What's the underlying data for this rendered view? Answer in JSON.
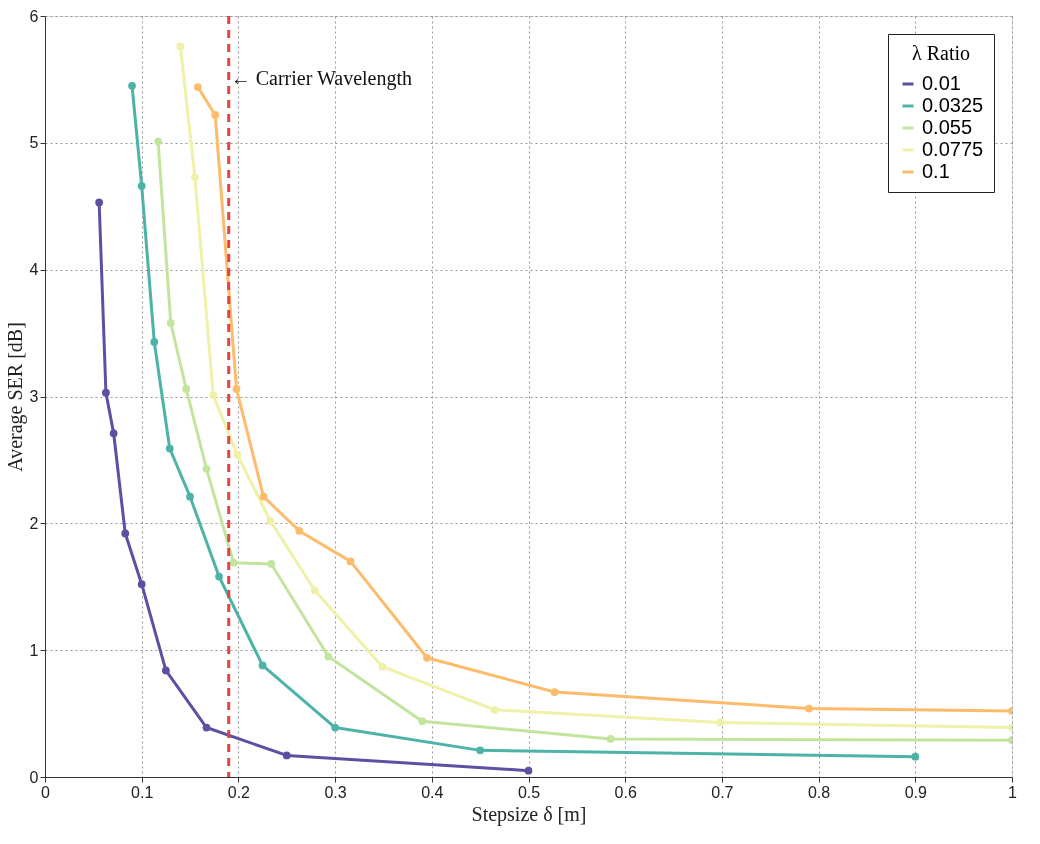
{
  "chart_data": {
    "type": "line",
    "xlabel": "Stepsize δ [m]",
    "ylabel": "Average SER [dB]",
    "legend_title": "λ Ratio",
    "xlim": [
      0,
      1
    ],
    "ylim": [
      0,
      6
    ],
    "xticks": [
      0,
      0.1,
      0.2,
      0.3,
      0.4,
      0.5,
      0.6,
      0.7,
      0.8,
      0.9,
      1
    ],
    "yticks": [
      0,
      1,
      2,
      3,
      4,
      5,
      6
    ],
    "grid": true,
    "legend": "top right",
    "marker": "circle",
    "line_style": "solid",
    "series": [
      {
        "name": "0.01",
        "color": "#5e4fa2",
        "x": [
          0.056,
          0.063,
          0.071,
          0.083,
          0.1,
          0.125,
          0.167,
          0.25,
          0.5
        ],
        "values": [
          4.53,
          3.03,
          2.71,
          1.92,
          1.52,
          0.84,
          0.39,
          0.17,
          0.05
        ]
      },
      {
        "name": "0.0325",
        "color": "#4db3a8",
        "x": [
          0.09,
          0.1,
          0.113,
          0.129,
          0.15,
          0.18,
          0.225,
          0.3,
          0.45,
          0.9
        ],
        "values": [
          5.45,
          4.66,
          3.43,
          2.59,
          2.21,
          1.58,
          0.88,
          0.39,
          0.21,
          0.16
        ]
      },
      {
        "name": "0.055",
        "color": "#c2e59e",
        "x": [
          0.117,
          0.13,
          0.146,
          0.167,
          0.195,
          0.234,
          0.293,
          0.39,
          0.585,
          1
        ],
        "values": [
          5.01,
          3.58,
          3.06,
          2.43,
          1.69,
          1.68,
          0.95,
          0.44,
          0.3,
          0.29
        ]
      },
      {
        "name": "0.0775",
        "color": "#f0f0a9",
        "x": [
          0.14,
          0.155,
          0.174,
          0.199,
          0.233,
          0.279,
          0.349,
          0.465,
          0.698,
          1
        ],
        "values": [
          5.76,
          4.73,
          3.01,
          2.54,
          2.02,
          1.47,
          0.87,
          0.53,
          0.43,
          0.39
        ]
      },
      {
        "name": "0.1",
        "color": "#fdbb6c",
        "x": [
          0.158,
          0.176,
          0.198,
          0.226,
          0.263,
          0.316,
          0.395,
          0.527,
          0.79,
          1
        ],
        "values": [
          5.44,
          5.22,
          3.06,
          2.21,
          1.94,
          1.7,
          0.94,
          0.67,
          0.54,
          0.52
        ]
      }
    ],
    "ref_lines": [
      {
        "axis": "x",
        "value": 0.19,
        "color": "#e8403f",
        "line_style": "dashed"
      }
    ],
    "annotations": [
      {
        "text": "← Carrier Wavelength",
        "x": 0.19,
        "y": 5.5
      }
    ]
  }
}
